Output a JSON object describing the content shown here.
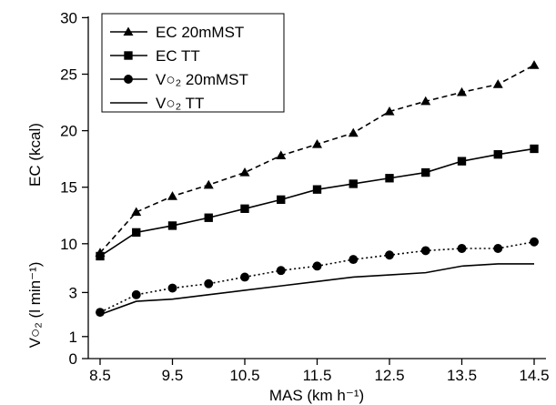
{
  "chart_data": {
    "type": "line",
    "xlabel": "MAS (km h⁻¹)",
    "ylabel_upper": "EC (kcal)",
    "ylabel_lower": "V○₂ (l min⁻¹)",
    "x_ticks": [
      "8.5",
      "9.5",
      "10.5",
      "11.5",
      "12.5",
      "13.5",
      "14.5"
    ],
    "upper_axis": {
      "ticks": [
        "10",
        "15",
        "20",
        "25",
        "30"
      ],
      "ylim": [
        10,
        30
      ]
    },
    "lower_axis": {
      "ticks": [
        "0",
        "1",
        "3"
      ],
      "ylim": [
        0,
        4.8
      ]
    },
    "x": [
      8.5,
      9.0,
      9.5,
      10.0,
      10.5,
      11.0,
      11.5,
      12.0,
      12.5,
      13.0,
      13.5,
      14.0,
      14.5
    ],
    "series": [
      {
        "name": "EC 20mMST",
        "axis": "upper",
        "marker": "triangle",
        "dash": "dashed",
        "values": [
          9.2,
          12.8,
          14.2,
          15.2,
          16.3,
          17.8,
          18.8,
          19.8,
          21.7,
          22.6,
          23.4,
          24.1,
          25.8
        ]
      },
      {
        "name": "EC TT",
        "axis": "upper",
        "marker": "square",
        "dash": "solid",
        "values": [
          8.9,
          11.0,
          11.6,
          12.3,
          13.1,
          13.9,
          14.8,
          15.3,
          15.8,
          16.3,
          17.3,
          17.9,
          18.4
        ]
      },
      {
        "name": "V○₂ 20mMST",
        "axis": "lower",
        "marker": "circle",
        "dash": "dotted",
        "values": [
          2.1,
          2.9,
          3.2,
          3.4,
          3.7,
          4.0,
          4.2,
          4.5,
          4.7,
          4.9,
          5.0,
          5.0,
          5.3
        ]
      },
      {
        "name": "V○₂ TT",
        "axis": "lower",
        "marker": "none",
        "dash": "solid",
        "values": [
          2.0,
          2.6,
          2.7,
          2.9,
          3.1,
          3.3,
          3.5,
          3.7,
          3.8,
          3.9,
          4.2,
          4.3,
          4.3
        ]
      }
    ],
    "legend_position": "top-left"
  }
}
